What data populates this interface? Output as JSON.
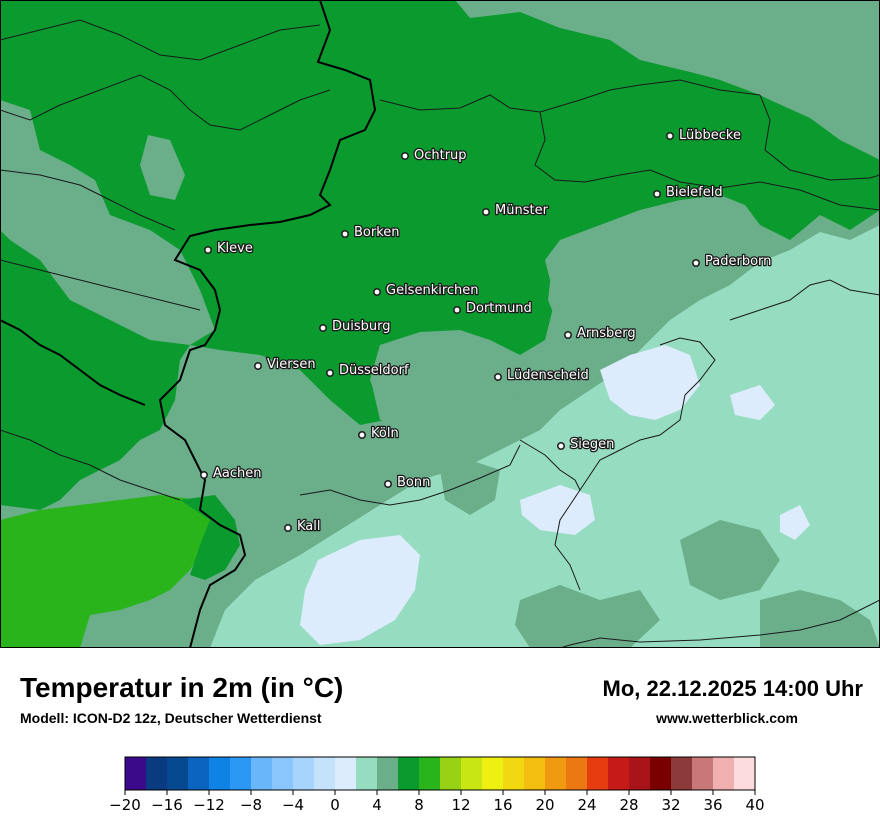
{
  "header": {
    "title": "Temperatur in 2m (in °C)",
    "subtitle": "Modell: ICON-D2 12z, Deutscher Wetterdienst",
    "datetime": "Mo, 22.12.2025 14:00 Uhr",
    "website": "www.wetterblick.com"
  },
  "map": {
    "cities": [
      "Lübbecke",
      "Ochtrup",
      "Bielefeld",
      "Münster",
      "Borken",
      "Kleve",
      "Paderborn",
      "Gelsenkirchen",
      "Dortmund",
      "Duisburg",
      "Arnsberg",
      "Viersen",
      "Düsseldorf",
      "Lüdenscheid",
      "Köln",
      "Siegen",
      "Aachen",
      "Bonn",
      "Kall"
    ]
  },
  "legend": {
    "tick_labels": [
      "−20",
      "−16",
      "−12",
      "−8",
      "−4",
      "0",
      "4",
      "8",
      "12",
      "16",
      "20",
      "24",
      "28",
      "32",
      "36",
      "40"
    ],
    "colors": [
      "#3a0a8a",
      "#0a3a80",
      "#054a90",
      "#0a64c0",
      "#0f82e6",
      "#2a98f4",
      "#6ab6fb",
      "#8ac6fb",
      "#a6d4fc",
      "#c4e2fc",
      "#dcecfc",
      "#96dcc0",
      "#6aae8a",
      "#0a9a2e",
      "#28b41a",
      "#98d214",
      "#c8e614",
      "#eef012",
      "#f2d810",
      "#f4be10",
      "#f09a12",
      "#ec7814",
      "#e63c10",
      "#c61a18",
      "#a8141a",
      "#7a0000",
      "#8c3a3a",
      "#c87878",
      "#f0b0b0",
      "#fcdcdc"
    ]
  }
}
